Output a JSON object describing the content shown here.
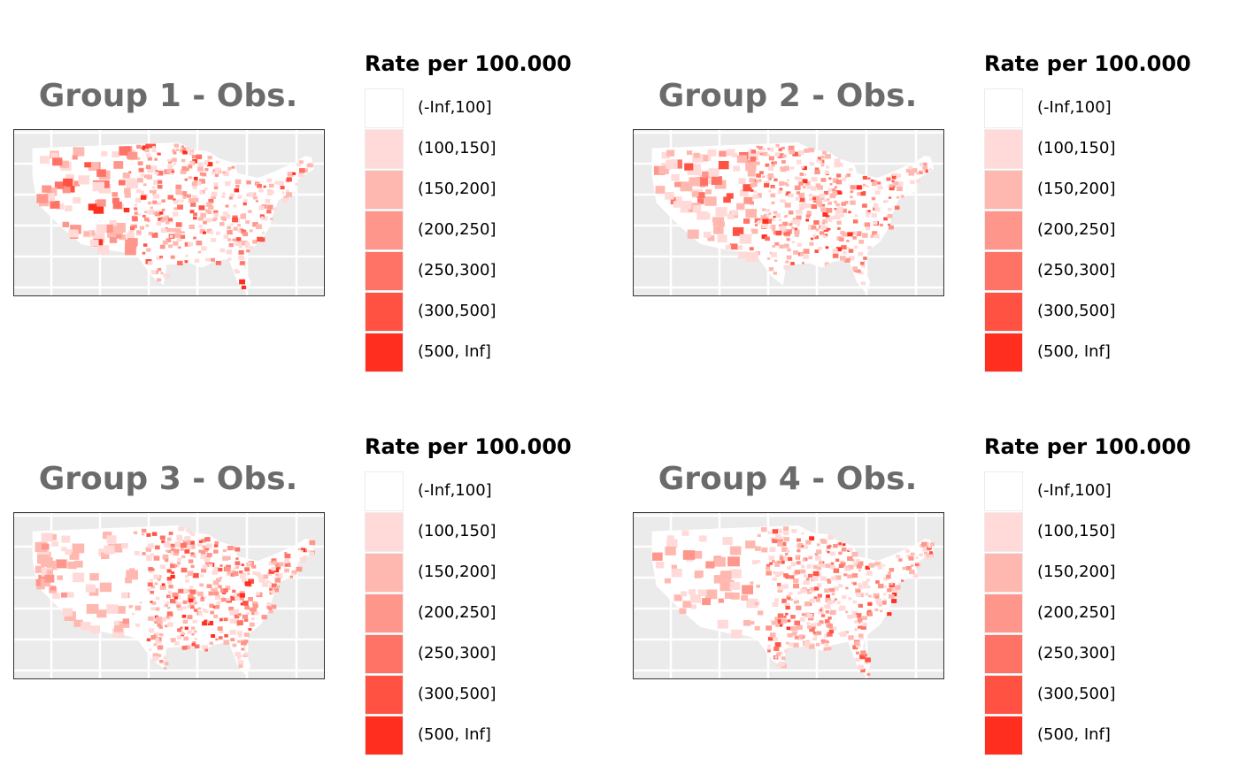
{
  "chart_data": {
    "type": "map",
    "panels": [
      {
        "title": "Group 1 - Obs.",
        "pattern": "midwest"
      },
      {
        "title": "Group 2 - Obs.",
        "pattern": "midwest"
      },
      {
        "title": "Group 3 - Obs.",
        "pattern": "east"
      },
      {
        "title": "Group 4 - Obs.",
        "pattern": "east"
      }
    ],
    "legend": {
      "title": "Rate per 100.000",
      "categories": [
        "(-Inf,100]",
        "(100,150]",
        "(150,200]",
        "(200,250]",
        "(250,300]",
        "(300,500]",
        "(500, Inf]"
      ],
      "colors": [
        "#FFFFFF",
        "#FFDAD8",
        "#FFB8B0",
        "#FF968B",
        "#FF7366",
        "#FF5243",
        "#FF2E1F"
      ]
    },
    "background": "#EBEBEB",
    "grid": true
  }
}
